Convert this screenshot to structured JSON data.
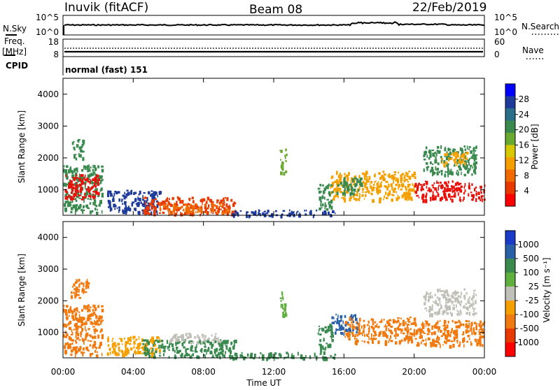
{
  "header": {
    "station": "Inuvik (fitACF)",
    "beam": "Beam 08",
    "date": "22/Feb/2019"
  },
  "noise_panel": {
    "left_label": "N.Sky",
    "right_label": "N.Search",
    "left_ticks": [
      "10^5",
      "10^0"
    ],
    "right_ticks": [
      "10^5",
      "10^0"
    ]
  },
  "freq_panel": {
    "left_label_top": "Freq.",
    "left_label_unit": "[MHz]",
    "right_label": "Nave",
    "left_ticks": [
      "18",
      "8"
    ],
    "right_ticks": [
      "60",
      "0"
    ]
  },
  "cpid_panel": {
    "label": "CPID",
    "text": "normal (fast) 151"
  },
  "colors": {
    "low_power_blue": "#1030e0",
    "mid_green": "#3a8a50",
    "light_green": "#60b040",
    "gray": "#c0c0b8",
    "orange": "#f07a10",
    "red": "#e81008"
  },
  "chart_data": [
    {
      "type": "heatmap",
      "name": "power",
      "ylabel": "Slant Range [km]",
      "colorbar_label": "Power [dB]",
      "colorbar_ticks": [
        "28",
        "24",
        "20",
        "16",
        "12",
        "8",
        "4"
      ],
      "colorbar_colors": [
        "#0000ff",
        "#1e3a9a",
        "#2a6e8a",
        "#3a8a50",
        "#6aaa30",
        "#d8c800",
        "#f4a000",
        "#f06a00",
        "#e83a00",
        "#ff0000"
      ],
      "y_ticks": [
        "1000",
        "2000",
        "3000",
        "4000"
      ],
      "ylim": [
        200,
        4500
      ],
      "x_range_hours": [
        0,
        24
      ],
      "patches": [
        {
          "t0": 0.0,
          "t1": 2.2,
          "r0": 300,
          "r1": 1800,
          "color": "#3a8a50"
        },
        {
          "t0": 0.1,
          "t1": 2.0,
          "r0": 700,
          "r1": 1500,
          "color": "#e81008"
        },
        {
          "t0": 0.5,
          "t1": 1.2,
          "r0": 2000,
          "r1": 2600,
          "color": "#3a8a50"
        },
        {
          "t0": 2.5,
          "t1": 5.5,
          "r0": 300,
          "r1": 1000,
          "color": "#1e3a9a"
        },
        {
          "t0": 4.5,
          "t1": 9.8,
          "r0": 250,
          "r1": 800,
          "color": "#e83a00"
        },
        {
          "t0": 5.5,
          "t1": 9.5,
          "r0": 300,
          "r1": 600,
          "color": "#f06a00"
        },
        {
          "t0": 9.5,
          "t1": 15.5,
          "r0": 200,
          "r1": 400,
          "color": "#1e3a9a"
        },
        {
          "t0": 15.2,
          "t1": 20.0,
          "r0": 700,
          "r1": 1600,
          "color": "#f4a000"
        },
        {
          "t0": 15.5,
          "t1": 17.0,
          "r0": 900,
          "r1": 1400,
          "color": "#3a8a50"
        },
        {
          "t0": 20.0,
          "t1": 24.0,
          "r0": 700,
          "r1": 1300,
          "color": "#e81008"
        },
        {
          "t0": 20.5,
          "t1": 23.5,
          "r0": 1500,
          "r1": 2400,
          "color": "#3a8a50"
        },
        {
          "t0": 21.5,
          "t1": 23.0,
          "r0": 1800,
          "r1": 2200,
          "color": "#f4a000"
        },
        {
          "t0": 12.3,
          "t1": 12.7,
          "r0": 1500,
          "r1": 2300,
          "color": "#6aaa30"
        },
        {
          "t0": 14.5,
          "t1": 15.3,
          "r0": 400,
          "r1": 1200,
          "color": "#3a8a50"
        }
      ]
    },
    {
      "type": "heatmap",
      "name": "velocity",
      "ylabel": "Slant Range [km]",
      "colorbar_label": "Velocity [m s⁻¹]",
      "colorbar_ticks": [
        "1000",
        "500",
        "100",
        "25",
        "-25",
        "-100",
        "-500",
        "-1000"
      ],
      "colorbar_colors": [
        "#1a3ac8",
        "#2a60a8",
        "#3a8a50",
        "#60b040",
        "#c0c0b8",
        "#f4a000",
        "#f07a10",
        "#e83a00",
        "#ff0000"
      ],
      "y_ticks": [
        "1000",
        "2000",
        "3000",
        "4000"
      ],
      "ylim": [
        200,
        4500
      ],
      "x_range_hours": [
        0,
        24
      ],
      "x_ticks": [
        "00:00",
        "04:00",
        "08:00",
        "12:00",
        "16:00",
        "20:00",
        "00:00"
      ],
      "xlabel": "Time UT",
      "patches": [
        {
          "t0": 0.0,
          "t1": 2.2,
          "r0": 300,
          "r1": 1900,
          "color": "#f07a10"
        },
        {
          "t0": 0.4,
          "t1": 1.4,
          "r0": 2100,
          "r1": 2700,
          "color": "#f07a10"
        },
        {
          "t0": 2.5,
          "t1": 5.5,
          "r0": 300,
          "r1": 900,
          "color": "#f4a000"
        },
        {
          "t0": 4.5,
          "t1": 9.8,
          "r0": 250,
          "r1": 800,
          "color": "#3a8a50"
        },
        {
          "t0": 6.0,
          "t1": 9.0,
          "r0": 700,
          "r1": 1000,
          "color": "#c0c0b8"
        },
        {
          "t0": 9.5,
          "t1": 15.5,
          "r0": 200,
          "r1": 400,
          "color": "#3a8a50"
        },
        {
          "t0": 15.2,
          "t1": 16.8,
          "r0": 1000,
          "r1": 1600,
          "color": "#2a60a8"
        },
        {
          "t0": 16.0,
          "t1": 20.0,
          "r0": 700,
          "r1": 1500,
          "color": "#f07a10"
        },
        {
          "t0": 20.0,
          "t1": 24.0,
          "r0": 600,
          "r1": 1400,
          "color": "#f07a10"
        },
        {
          "t0": 20.5,
          "t1": 23.5,
          "r0": 1600,
          "r1": 2400,
          "color": "#c0c0b8"
        },
        {
          "t0": 12.3,
          "t1": 12.7,
          "r0": 1500,
          "r1": 2300,
          "color": "#60b040"
        },
        {
          "t0": 14.5,
          "t1": 15.3,
          "r0": 400,
          "r1": 1300,
          "color": "#3a8a50"
        }
      ]
    }
  ]
}
